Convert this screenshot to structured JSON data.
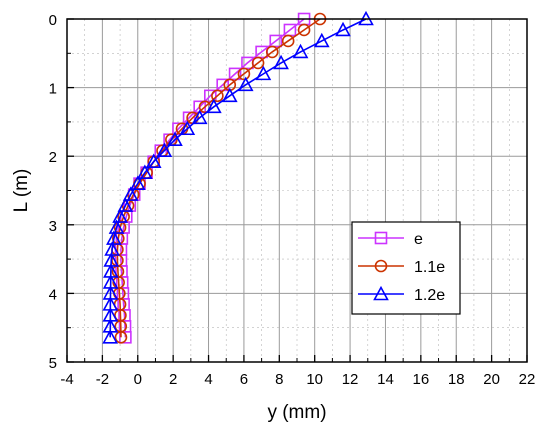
{
  "chart_data": {
    "type": "line",
    "xlabel": "y (mm)",
    "ylabel": "L (m)",
    "xlim": [
      -4,
      22
    ],
    "ylim": [
      0,
      5
    ],
    "y_inverted": true,
    "x_ticks": [
      -4,
      -2,
      0,
      2,
      4,
      6,
      8,
      10,
      12,
      14,
      16,
      18,
      20,
      22
    ],
    "y_ticks": [
      0,
      1,
      2,
      3,
      4,
      5
    ],
    "grid": true,
    "legend_position": "right-middle",
    "series": [
      {
        "name": "e",
        "color": "#cc33ff",
        "marker": "square",
        "x": [
          9.4,
          8.6,
          7.8,
          7.0,
          6.2,
          5.5,
          4.8,
          4.1,
          3.5,
          2.9,
          2.3,
          1.8,
          1.3,
          0.9,
          0.5,
          0.1,
          -0.2,
          -0.45,
          -0.65,
          -0.8,
          -0.9,
          -0.95,
          -0.95,
          -0.92,
          -0.88,
          -0.84,
          -0.8,
          -0.75,
          -0.72,
          -0.7
        ],
        "y": [
          0.0,
          0.16,
          0.32,
          0.48,
          0.64,
          0.8,
          0.96,
          1.12,
          1.28,
          1.44,
          1.6,
          1.76,
          1.92,
          2.08,
          2.24,
          2.4,
          2.56,
          2.72,
          2.88,
          3.04,
          3.2,
          3.36,
          3.52,
          3.68,
          3.84,
          4.0,
          4.16,
          4.32,
          4.48,
          4.64
        ]
      },
      {
        "name": "1.1e",
        "color": "#cc3300",
        "marker": "circle",
        "x": [
          10.3,
          9.4,
          8.5,
          7.6,
          6.8,
          6.0,
          5.2,
          4.5,
          3.8,
          3.1,
          2.5,
          1.9,
          1.4,
          0.9,
          0.5,
          0.1,
          -0.25,
          -0.55,
          -0.8,
          -1.0,
          -1.1,
          -1.15,
          -1.15,
          -1.12,
          -1.08,
          -1.04,
          -1.0,
          -0.98,
          -0.96,
          -0.95
        ],
        "y": [
          0.0,
          0.16,
          0.32,
          0.48,
          0.64,
          0.8,
          0.96,
          1.12,
          1.28,
          1.44,
          1.6,
          1.76,
          1.92,
          2.08,
          2.24,
          2.4,
          2.56,
          2.72,
          2.88,
          3.04,
          3.2,
          3.36,
          3.52,
          3.68,
          3.84,
          4.0,
          4.16,
          4.32,
          4.48,
          4.64
        ]
      },
      {
        "name": "1.2e",
        "color": "#0000ff",
        "marker": "triangle",
        "x": [
          12.9,
          11.6,
          10.4,
          9.2,
          8.1,
          7.1,
          6.1,
          5.2,
          4.3,
          3.5,
          2.8,
          2.1,
          1.5,
          0.9,
          0.4,
          0.0,
          -0.4,
          -0.7,
          -1.0,
          -1.2,
          -1.35,
          -1.45,
          -1.5,
          -1.52,
          -1.53,
          -1.54,
          -1.55,
          -1.55,
          -1.55,
          -1.56
        ],
        "y": [
          0.0,
          0.16,
          0.32,
          0.48,
          0.64,
          0.8,
          0.96,
          1.12,
          1.28,
          1.44,
          1.6,
          1.76,
          1.92,
          2.08,
          2.24,
          2.4,
          2.56,
          2.72,
          2.88,
          3.04,
          3.2,
          3.36,
          3.52,
          3.68,
          3.84,
          4.0,
          4.16,
          4.32,
          4.48,
          4.64
        ]
      }
    ]
  }
}
